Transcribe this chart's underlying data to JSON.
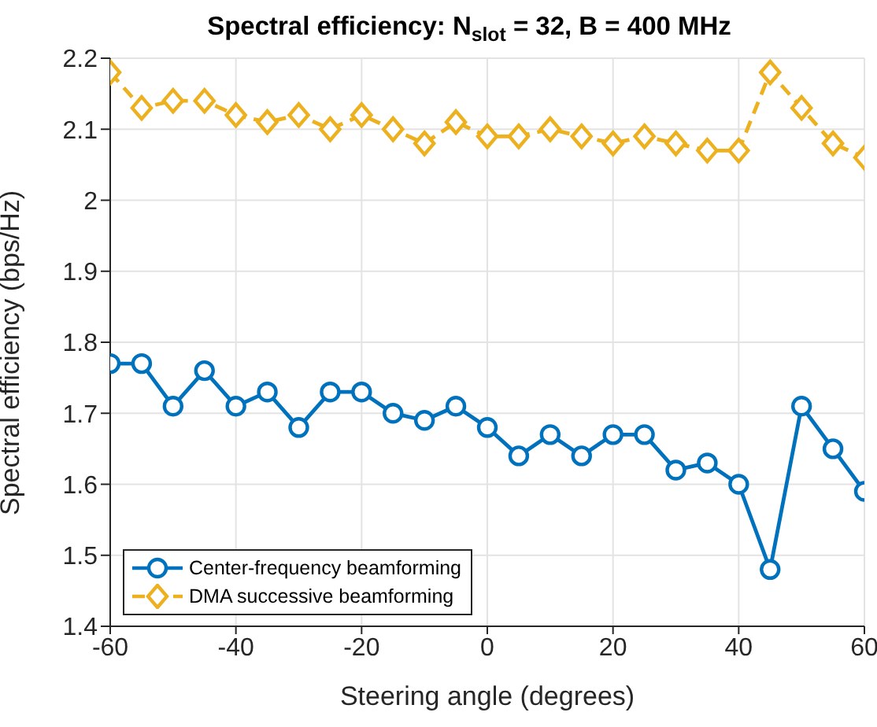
{
  "chart_data": {
    "type": "line",
    "title": "Spectral efficiency: N$_{slot}$ = 32, B = 400 MHz",
    "xlabel": "Steering angle (degrees)",
    "ylabel": "Spectral efficiency (bps/Hz)",
    "x": [
      -60,
      -55,
      -50,
      -45,
      -40,
      -35,
      -30,
      -25,
      -20,
      -15,
      -10,
      -5,
      0,
      5,
      10,
      15,
      20,
      25,
      30,
      35,
      40,
      45,
      50,
      55,
      60
    ],
    "series": [
      {
        "name": "Center-frequency beamforming",
        "color": "#0072bd",
        "marker": "circle",
        "line_style": "solid",
        "values": [
          1.77,
          1.77,
          1.71,
          1.76,
          1.71,
          1.73,
          1.68,
          1.73,
          1.73,
          1.7,
          1.69,
          1.71,
          1.68,
          1.64,
          1.67,
          1.64,
          1.67,
          1.67,
          1.62,
          1.63,
          1.6,
          1.48,
          1.71,
          1.65,
          1.59
        ]
      },
      {
        "name": "DMA successive beamforming",
        "color": "#edb120",
        "marker": "diamond",
        "line_style": "dashed",
        "values": [
          2.18,
          2.13,
          2.14,
          2.14,
          2.12,
          2.11,
          2.12,
          2.1,
          2.12,
          2.1,
          2.08,
          2.11,
          2.09,
          2.09,
          2.1,
          2.09,
          2.08,
          2.09,
          2.08,
          2.07,
          2.07,
          2.18,
          2.13,
          2.08,
          2.06
        ]
      }
    ],
    "xlim": [
      -60,
      60
    ],
    "xticks": [
      -60,
      -40,
      -20,
      0,
      20,
      40,
      60
    ],
    "ylim": [
      1.4,
      2.2
    ],
    "yticks": [
      1.4,
      1.5,
      1.6,
      1.7,
      1.8,
      1.9,
      2,
      2.1,
      2.2
    ],
    "grid": true,
    "legend": "bottom left"
  }
}
